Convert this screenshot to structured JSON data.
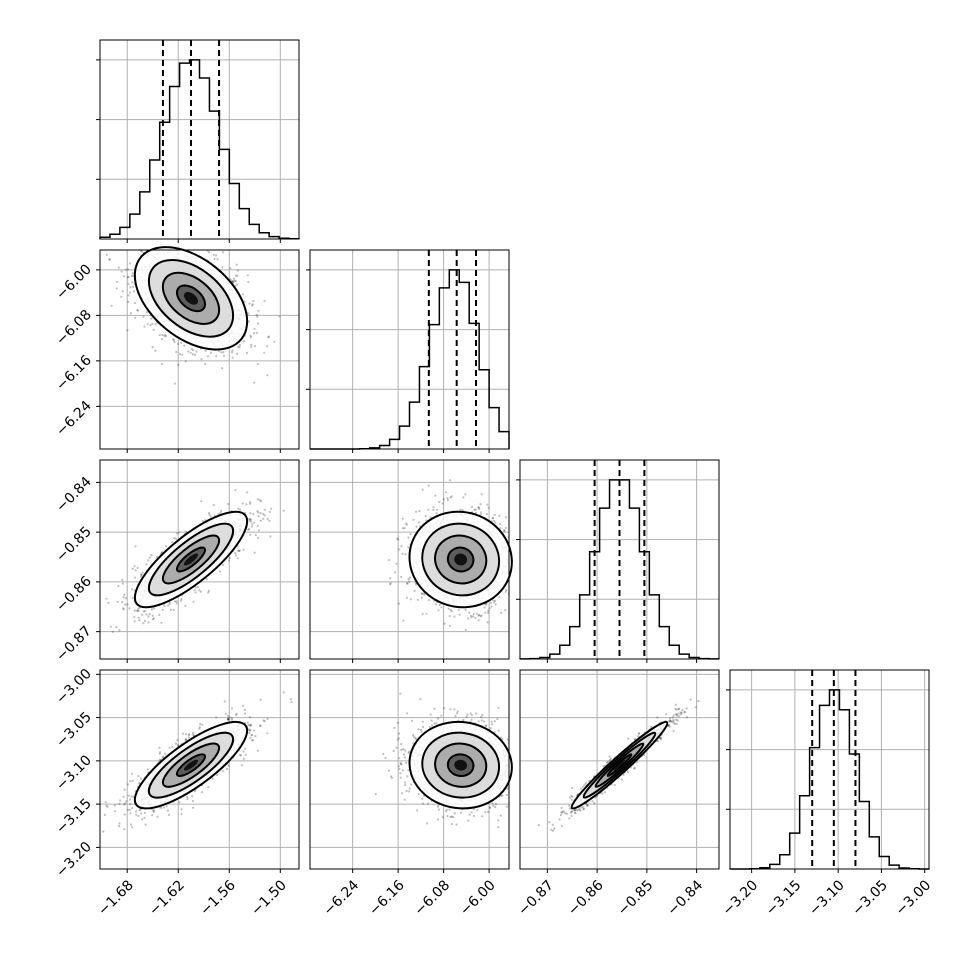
{
  "chart_data": {
    "type": "corner",
    "title": "",
    "grid": true,
    "parameters": [
      {
        "mean": -1.605,
        "sigma": 0.033,
        "range": [
          -1.712,
          -1.478
        ],
        "quantiles": [
          -1.638,
          -1.605,
          -1.572
        ],
        "ticks": [
          -1.68,
          -1.62,
          -1.56,
          -1.5
        ],
        "tick_labels": [
          "−1.68",
          "−1.62",
          "−1.56",
          "−1.50"
        ]
      },
      {
        "mean": -6.05,
        "sigma": 0.045,
        "range": [
          -6.315,
          -5.965
        ],
        "quantiles": [
          -6.106,
          -6.057,
          -6.023
        ],
        "ticks": [
          -6.24,
          -6.16,
          -6.08,
          -6.0
        ],
        "tick_labels": [
          "−6.24",
          "−6.16",
          "−6.08",
          "−6.00"
        ]
      },
      {
        "mean": -0.8555,
        "sigma": 0.0048,
        "range": [
          -0.8755,
          -0.8355
        ],
        "quantiles": [
          -0.8605,
          -0.8555,
          -0.8505
        ],
        "ticks": [
          -0.87,
          -0.86,
          -0.85,
          -0.84
        ],
        "tick_labels": [
          "−0.87",
          "−0.86",
          "−0.85",
          "−0.84"
        ]
      },
      {
        "mean": -3.105,
        "sigma": 0.025,
        "range": [
          -3.225,
          -2.995
        ],
        "quantiles": [
          -3.13,
          -3.105,
          -3.08
        ],
        "ticks": [
          -3.2,
          -3.15,
          -3.1,
          -3.05,
          -3.0
        ],
        "tick_labels": [
          "−3.20",
          "−3.15",
          "−3.10",
          "−3.05",
          "−3.00"
        ]
      }
    ],
    "correlations": [
      [
        1.0,
        -0.45,
        0.8,
        0.8
      ],
      [
        -0.45,
        1.0,
        -0.05,
        -0.05
      ],
      [
        0.8,
        -0.05,
        1.0,
        0.97
      ],
      [
        0.8,
        -0.05,
        0.97,
        1.0
      ]
    ],
    "histogram_bins": 20
  }
}
